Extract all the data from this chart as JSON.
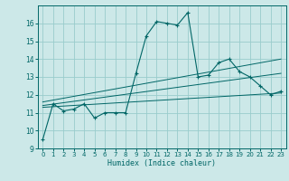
{
  "title": "",
  "xlabel": "Humidex (Indice chaleur)",
  "background_color": "#cce8e8",
  "grid_color": "#99cccc",
  "line_color": "#006666",
  "xlim": [
    -0.5,
    23.5
  ],
  "ylim": [
    9,
    17
  ],
  "yticks": [
    9,
    10,
    11,
    12,
    13,
    14,
    15,
    16
  ],
  "xticks": [
    0,
    1,
    2,
    3,
    4,
    5,
    6,
    7,
    8,
    9,
    10,
    11,
    12,
    13,
    14,
    15,
    16,
    17,
    18,
    19,
    20,
    21,
    22,
    23
  ],
  "series1": {
    "x": [
      0,
      1,
      2,
      3,
      4,
      5,
      6,
      7,
      8,
      9,
      10,
      11,
      12,
      13,
      14,
      15,
      16,
      17,
      18,
      19,
      20,
      21,
      22,
      23
    ],
    "y": [
      9.5,
      11.5,
      11.1,
      11.2,
      11.5,
      10.7,
      11.0,
      11.0,
      11.0,
      13.2,
      15.3,
      16.1,
      16.0,
      15.9,
      16.6,
      13.0,
      13.1,
      13.8,
      14.0,
      13.3,
      13.0,
      12.5,
      12.0,
      12.2
    ]
  },
  "series2": {
    "x": [
      0,
      23
    ],
    "y": [
      11.3,
      12.1
    ]
  },
  "series3": {
    "x": [
      0,
      23
    ],
    "y": [
      11.4,
      13.2
    ]
  },
  "series4": {
    "x": [
      0,
      23
    ],
    "y": [
      11.6,
      14.0
    ]
  }
}
